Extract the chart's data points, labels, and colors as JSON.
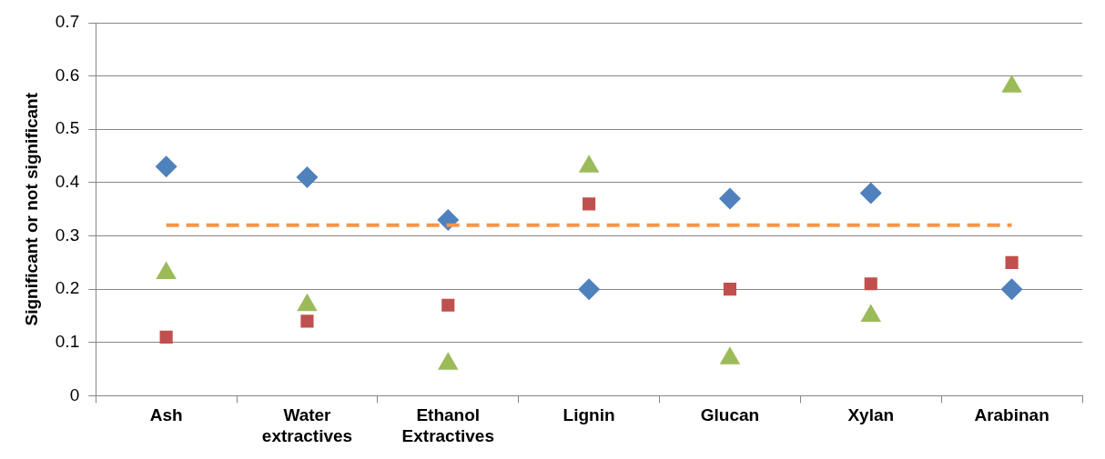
{
  "chart_data": {
    "type": "scatter",
    "ylabel": "Significant or not significant",
    "categories": [
      "Ash",
      "Water extractives",
      "Ethanol Extractives",
      "Lignin",
      "Glucan",
      "Xylan",
      "Arabinan"
    ],
    "series": [
      {
        "color": "#4f81bd",
        "marker": "diamond",
        "values": [
          0.43,
          0.41,
          0.33,
          0.2,
          0.37,
          0.38,
          0.2
        ]
      },
      {
        "color": "#c0504d",
        "marker": "square",
        "values": [
          0.11,
          0.14,
          0.17,
          0.36,
          0.2,
          0.21,
          0.25
        ]
      },
      {
        "color": "#9bbb59",
        "marker": "triangle",
        "values": [
          0.23,
          0.17,
          0.06,
          0.43,
          0.07,
          0.15,
          0.58
        ]
      }
    ],
    "ref_lines": [
      {
        "axis": "y",
        "value": 0.32,
        "color": "#f79646",
        "line_style": "dashed"
      }
    ],
    "ylim": [
      0,
      0.7
    ],
    "yticks": [
      0,
      0.1,
      0.2,
      0.3,
      0.4,
      0.5,
      0.6,
      0.7
    ],
    "grid": "y",
    "legend": false
  }
}
